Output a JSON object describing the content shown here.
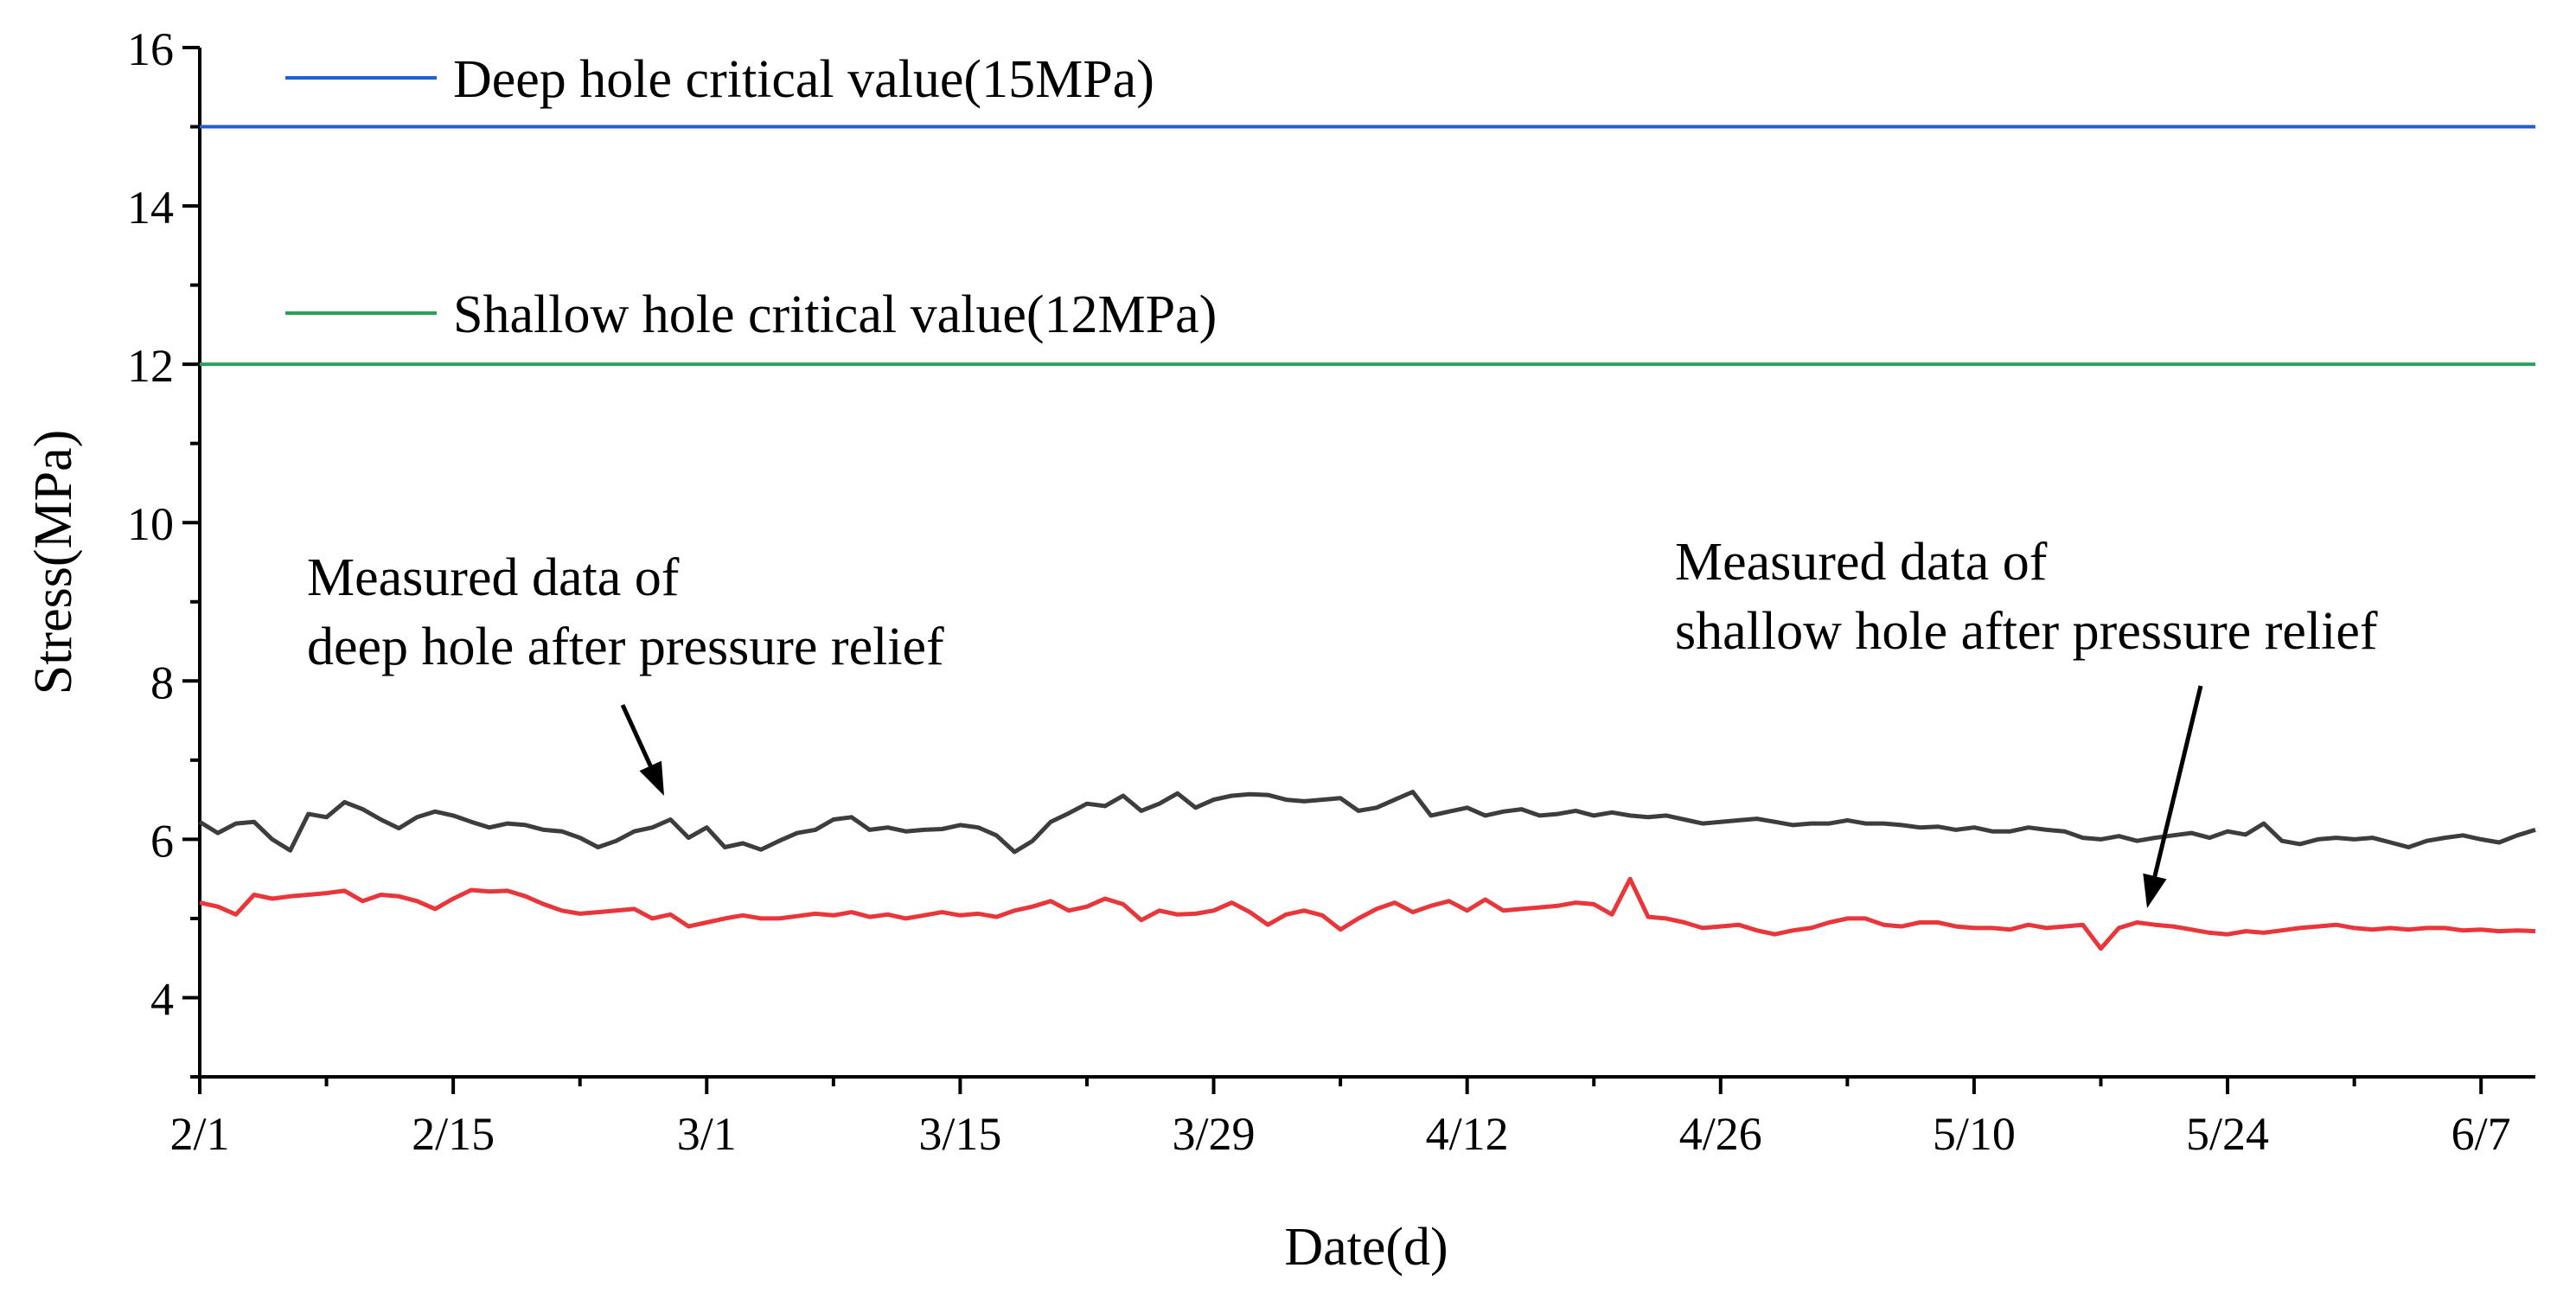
{
  "chart_data": {
    "type": "line",
    "xlabel": "Date(d)",
    "ylabel": "Stress(MPa)",
    "ylim": [
      3,
      16
    ],
    "xlim": [
      0,
      129
    ],
    "xticks": [
      {
        "x": 0,
        "label": "2/1"
      },
      {
        "x": 14,
        "label": "2/15"
      },
      {
        "x": 28,
        "label": "3/1"
      },
      {
        "x": 42,
        "label": "3/15"
      },
      {
        "x": 56,
        "label": "3/29"
      },
      {
        "x": 70,
        "label": "4/12"
      },
      {
        "x": 84,
        "label": "4/26"
      },
      {
        "x": 98,
        "label": "5/10"
      },
      {
        "x": 112,
        "label": "5/24"
      },
      {
        "x": 126,
        "label": "6/7"
      }
    ],
    "yticks": [
      4,
      6,
      8,
      10,
      12,
      14,
      16
    ],
    "reference_lines": [
      {
        "name": "Deep hole critical value(15MPa)",
        "y": 15,
        "color": "#1f5fd4"
      },
      {
        "name": "Shallow hole critical value(12MPa)",
        "y": 12,
        "color": "#2e9e5b"
      }
    ],
    "series": [
      {
        "name": "Measured data of deep hole after pressure relief",
        "color": "#3d3d3d",
        "x": [
          0,
          1,
          2,
          3,
          4,
          5,
          6,
          7,
          8,
          9,
          10,
          11,
          12,
          13,
          14,
          15,
          16,
          17,
          18,
          19,
          20,
          21,
          22,
          23,
          24,
          25,
          26,
          27,
          28,
          29,
          30,
          31,
          32,
          33,
          34,
          35,
          36,
          37,
          38,
          39,
          40,
          41,
          42,
          43,
          44,
          45,
          46,
          47,
          48,
          49,
          50,
          51,
          52,
          53,
          54,
          55,
          56,
          57,
          58,
          59,
          60,
          61,
          62,
          63,
          64,
          65,
          66,
          67,
          68,
          69,
          70,
          71,
          72,
          73,
          74,
          75,
          76,
          77,
          78,
          79,
          80,
          81,
          82,
          83,
          84,
          85,
          86,
          87,
          88,
          89,
          90,
          91,
          92,
          93,
          94,
          95,
          96,
          97,
          98,
          99,
          100,
          101,
          102,
          103,
          104,
          105,
          106,
          107,
          108,
          109,
          110,
          111,
          112,
          113,
          114,
          115,
          116,
          117,
          118,
          119,
          120,
          121,
          122,
          123,
          124,
          125,
          126,
          127,
          128,
          129
        ],
        "y": [
          6.22,
          6.08,
          6.2,
          6.22,
          6.0,
          5.86,
          6.32,
          6.28,
          6.47,
          6.38,
          6.25,
          6.14,
          6.28,
          6.35,
          6.3,
          6.22,
          6.15,
          6.2,
          6.18,
          6.12,
          6.1,
          6.02,
          5.9,
          5.98,
          6.1,
          6.15,
          6.25,
          6.02,
          6.15,
          5.9,
          5.95,
          5.87,
          5.98,
          6.08,
          6.12,
          6.25,
          6.28,
          6.12,
          6.15,
          6.1,
          6.12,
          6.13,
          6.18,
          6.15,
          6.05,
          5.84,
          5.98,
          6.22,
          6.33,
          6.45,
          6.42,
          6.55,
          6.36,
          6.45,
          6.58,
          6.4,
          6.5,
          6.55,
          6.57,
          6.56,
          6.5,
          6.48,
          6.5,
          6.52,
          6.36,
          6.4,
          6.5,
          6.6,
          6.3,
          6.35,
          6.4,
          6.3,
          6.35,
          6.38,
          6.3,
          6.32,
          6.36,
          6.3,
          6.34,
          6.3,
          6.28,
          6.3,
          6.25,
          6.2,
          6.22,
          6.24,
          6.26,
          6.22,
          6.18,
          6.2,
          6.2,
          6.24,
          6.2,
          6.2,
          6.18,
          6.15,
          6.16,
          6.12,
          6.15,
          6.1,
          6.1,
          6.15,
          6.12,
          6.1,
          6.02,
          6.0,
          6.04,
          5.98,
          6.02,
          6.05,
          6.08,
          6.02,
          6.1,
          6.06,
          6.2,
          5.98,
          5.94,
          6.0,
          6.02,
          6.0,
          6.02,
          5.96,
          5.9,
          5.98,
          6.02,
          6.05,
          6.0,
          5.96,
          6.05,
          6.12
        ]
      },
      {
        "name": "Measured data of shallow hole after pressure relief",
        "color": "#e8363a",
        "x": [
          0,
          1,
          2,
          3,
          4,
          5,
          6,
          7,
          8,
          9,
          10,
          11,
          12,
          13,
          14,
          15,
          16,
          17,
          18,
          19,
          20,
          21,
          22,
          23,
          24,
          25,
          26,
          27,
          28,
          29,
          30,
          31,
          32,
          33,
          34,
          35,
          36,
          37,
          38,
          39,
          40,
          41,
          42,
          43,
          44,
          45,
          46,
          47,
          48,
          49,
          50,
          51,
          52,
          53,
          54,
          55,
          56,
          57,
          58,
          59,
          60,
          61,
          62,
          63,
          64,
          65,
          66,
          67,
          68,
          69,
          70,
          71,
          72,
          73,
          74,
          75,
          76,
          77,
          78,
          79,
          80,
          81,
          82,
          83,
          84,
          85,
          86,
          87,
          88,
          89,
          90,
          91,
          92,
          93,
          94,
          95,
          96,
          97,
          98,
          99,
          100,
          101,
          102,
          103,
          104,
          105,
          106,
          107,
          108,
          109,
          110,
          111,
          112,
          113,
          114,
          115,
          116,
          117,
          118,
          119,
          120,
          121,
          122,
          123,
          124,
          125,
          126,
          127,
          128,
          129
        ],
        "y": [
          5.2,
          5.15,
          5.05,
          5.3,
          5.25,
          5.28,
          5.3,
          5.32,
          5.35,
          5.22,
          5.3,
          5.28,
          5.22,
          5.12,
          5.25,
          5.36,
          5.34,
          5.35,
          5.28,
          5.18,
          5.1,
          5.06,
          5.08,
          5.1,
          5.12,
          5.0,
          5.05,
          4.9,
          4.95,
          5.0,
          5.04,
          5.0,
          5.0,
          5.03,
          5.06,
          5.04,
          5.08,
          5.02,
          5.05,
          5.0,
          5.04,
          5.08,
          5.04,
          5.06,
          5.02,
          5.1,
          5.15,
          5.22,
          5.1,
          5.15,
          5.25,
          5.18,
          4.98,
          5.1,
          5.05,
          5.06,
          5.1,
          5.2,
          5.08,
          4.92,
          5.05,
          5.1,
          5.04,
          4.86,
          5.0,
          5.12,
          5.2,
          5.08,
          5.16,
          5.22,
          5.1,
          5.24,
          5.1,
          5.12,
          5.14,
          5.16,
          5.2,
          5.18,
          5.05,
          5.5,
          5.02,
          5.0,
          4.95,
          4.88,
          4.9,
          4.92,
          4.85,
          4.8,
          4.85,
          4.88,
          4.95,
          5.0,
          5.0,
          4.92,
          4.9,
          4.95,
          4.95,
          4.9,
          4.88,
          4.88,
          4.86,
          4.92,
          4.88,
          4.9,
          4.92,
          4.62,
          4.88,
          4.95,
          4.92,
          4.9,
          4.86,
          4.82,
          4.8,
          4.84,
          4.82,
          4.85,
          4.88,
          4.9,
          4.92,
          4.88,
          4.86,
          4.88,
          4.86,
          4.88,
          4.88,
          4.85,
          4.86,
          4.84,
          4.85,
          4.84
        ]
      }
    ],
    "annotations": [
      {
        "lines": [
          "Measured data of",
          "deep hole after pressure relief"
        ],
        "target_series": 0,
        "target_x": 26.5
      },
      {
        "lines": [
          "Measured data of",
          "shallow hole after pressure relief"
        ],
        "target_series": 1,
        "target_x": 107.5
      }
    ]
  }
}
